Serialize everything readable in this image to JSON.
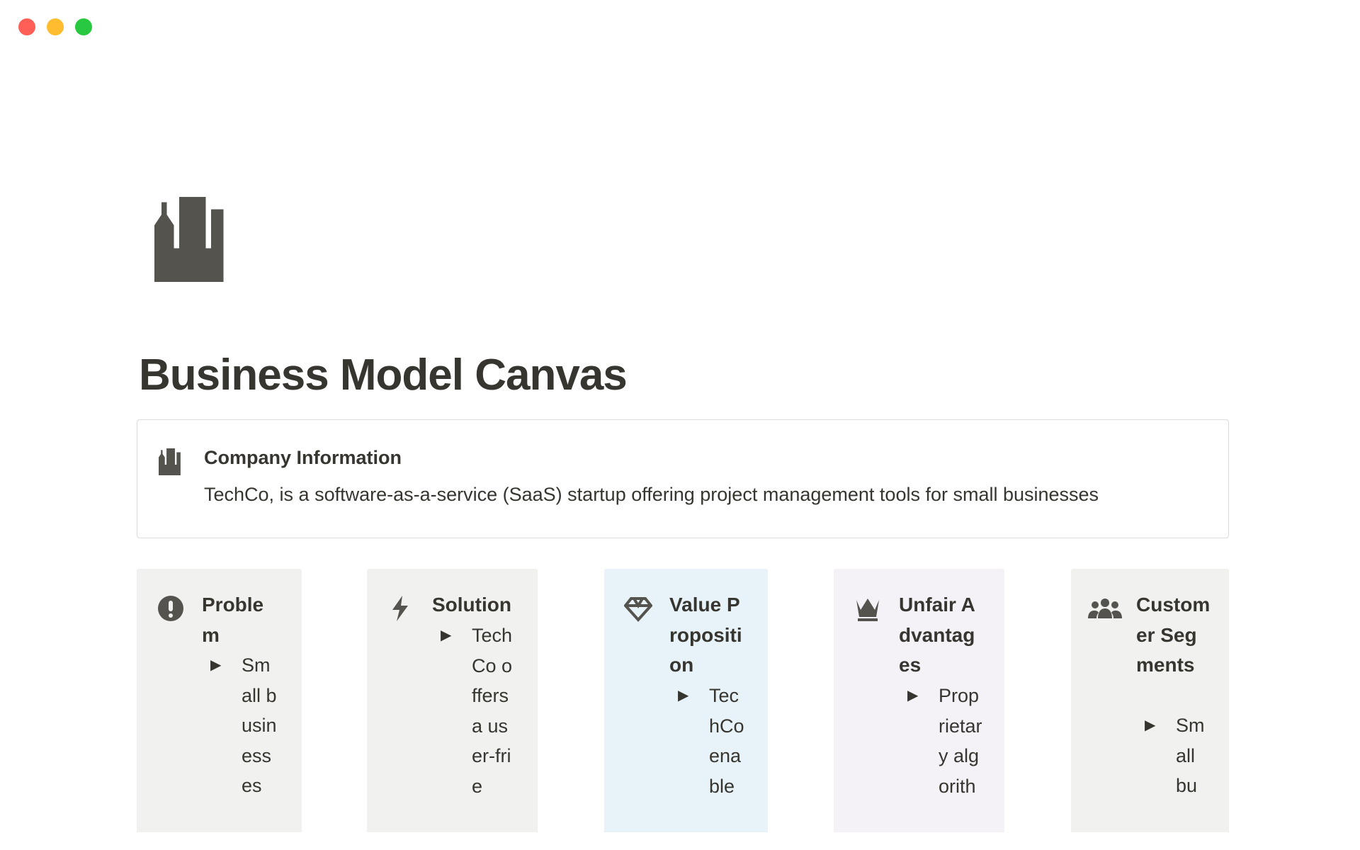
{
  "window": {
    "controls": [
      {
        "name": "close",
        "color": "#ff5f57"
      },
      {
        "name": "minimize",
        "color": "#febc2e"
      },
      {
        "name": "zoom",
        "color": "#28c840"
      }
    ]
  },
  "page": {
    "icon": "factory-icon",
    "title": "Business Model Canvas"
  },
  "company": {
    "icon": "factory-icon",
    "title": "Company Information",
    "description": "TechCo, is a software-as-a-service (SaaS) startup offering project management tools for small businesses"
  },
  "cards": [
    {
      "icon": "exclamation-circle-icon",
      "title": "Problem",
      "bg": "#f1f1ef",
      "item": "Small businesses"
    },
    {
      "icon": "lightning-icon",
      "title": "Solution",
      "bg": "#f1f1ef",
      "item": "TechCo offers a user-frie"
    },
    {
      "icon": "diamond-icon",
      "title": "Value Proposition",
      "bg": "#e7f3f8",
      "item": "TechCo enable"
    },
    {
      "icon": "crown-icon",
      "title": "Unfair Advantages",
      "bg": "#f4f2f7",
      "item": "Proprietary algorith"
    },
    {
      "icon": "people-icon",
      "title": "Customer Segments",
      "bg": "#f1f1ef",
      "item": "Small bu"
    }
  ],
  "toggle_glyph": "▶"
}
